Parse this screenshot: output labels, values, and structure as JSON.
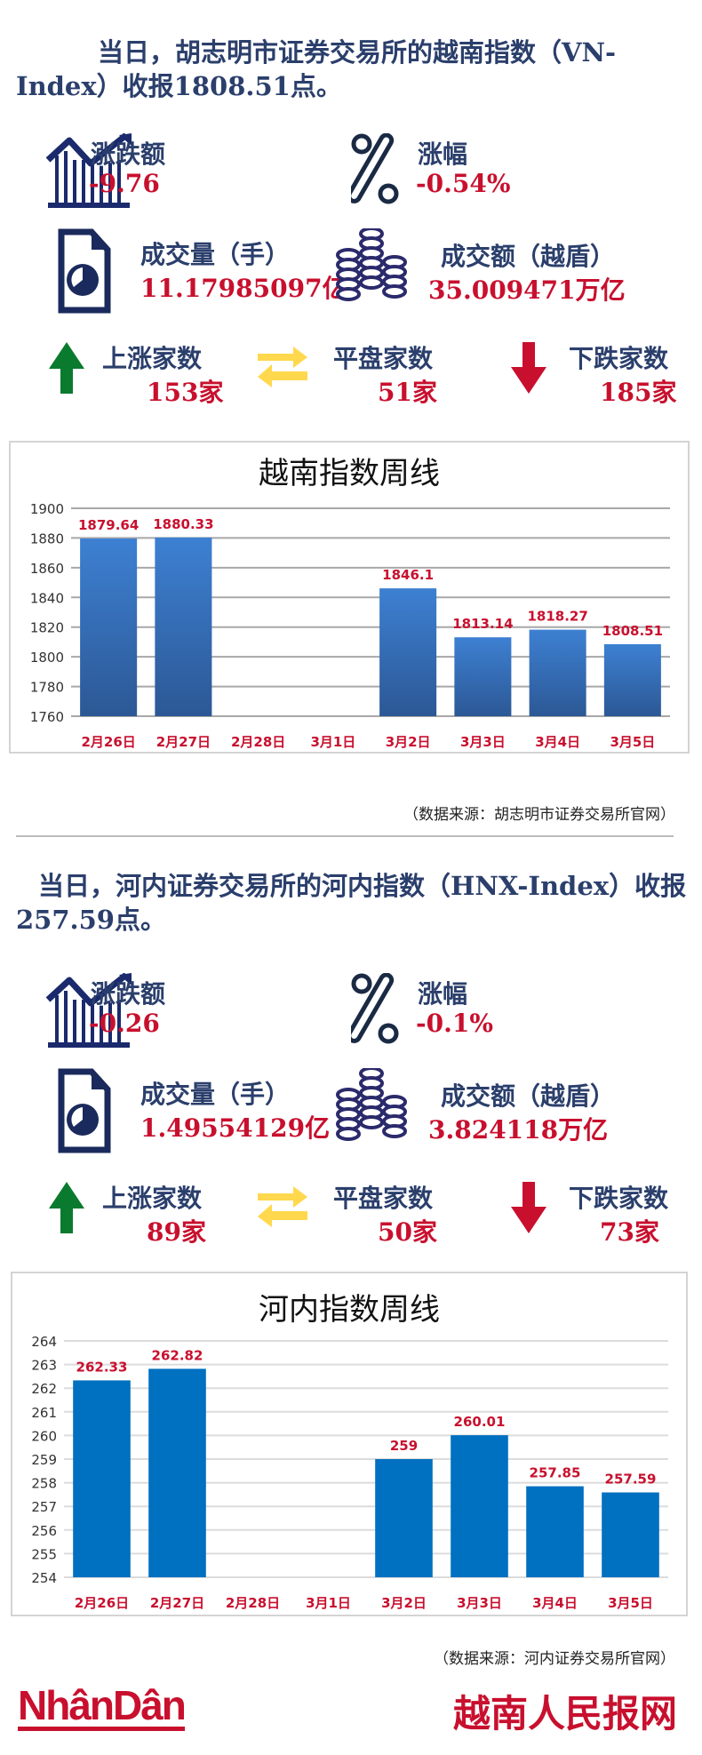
{
  "hose": {
    "headline": "当日，胡志明市证券交易所的越南指数（VN-Index）收报1808.51点。",
    "change": {
      "label": "涨跌额",
      "value": "-9.76",
      "icon": "trend-chart-icon"
    },
    "pct": {
      "label": "涨幅",
      "value": "-0.54%",
      "icon": "percent-icon"
    },
    "volume": {
      "label": "成交量（手）",
      "value": "11.17985097亿",
      "icon": "document-chart-icon"
    },
    "turnover": {
      "label": "成交额（越盾）",
      "value": "35.009471万亿",
      "icon": "coins-icon"
    },
    "up": {
      "label": "上涨家数",
      "value": "153家",
      "icon": "arrow-up-icon"
    },
    "flat": {
      "label": "平盘家数",
      "value": "51家",
      "icon": "exchange-arrows-icon"
    },
    "down": {
      "label": "下跌家数",
      "value": "185家",
      "icon": "arrow-down-icon"
    },
    "source": "（数据来源：胡志明市证券交易所官网）"
  },
  "hnx": {
    "headline": "当日，河内证券交易所的河内指数（HNX-Index）收报257.59点。",
    "change": {
      "label": "涨跌额",
      "value": "-0.26",
      "icon": "trend-chart-icon"
    },
    "pct": {
      "label": "涨幅",
      "value": "-0.1%",
      "icon": "percent-icon"
    },
    "volume": {
      "label": "成交量（手）",
      "value": "1.49554129亿",
      "icon": "document-chart-icon"
    },
    "turnover": {
      "label": "成交额（越盾）",
      "value": "3.824118万亿",
      "icon": "coins-icon"
    },
    "up": {
      "label": "上涨家数",
      "value": "89家",
      "icon": "arrow-up-icon"
    },
    "flat": {
      "label": "平盘家数",
      "value": "50家",
      "icon": "exchange-arrows-icon"
    },
    "down": {
      "label": "下跌家数",
      "value": "73家",
      "icon": "arrow-down-icon"
    },
    "source": "（数据来源：河内证券交易所官网）"
  },
  "colors": {
    "navy": "#2b3f6c",
    "red": "#c8102e",
    "green": "#0a7a2f",
    "yellow": "#ffd84d",
    "bar1": "#3a78c9",
    "bar2": "#0070c0"
  },
  "chart_data": [
    {
      "type": "bar",
      "title": "越南指数周线",
      "categories": [
        "2月26日",
        "2月27日",
        "2月28日",
        "3月1日",
        "3月2日",
        "3月3日",
        "3月4日",
        "3月5日"
      ],
      "values": [
        1879.64,
        1880.33,
        null,
        null,
        1846.1,
        1813.14,
        1818.27,
        1808.51
      ],
      "data_labels": [
        "1879.64",
        "1880.33",
        "",
        "",
        "1846.1",
        "1813.14",
        "1818.27",
        "1808.51"
      ],
      "yticks": [
        1760,
        1780,
        1800,
        1820,
        1840,
        1860,
        1880,
        1900
      ],
      "ylim": [
        1760,
        1900
      ],
      "grid": true
    },
    {
      "type": "bar",
      "title": "河内指数周线",
      "categories": [
        "2月26日",
        "2月27日",
        "2月28日",
        "3月1日",
        "3月2日",
        "3月3日",
        "3月4日",
        "3月5日"
      ],
      "values": [
        262.33,
        262.82,
        null,
        null,
        259,
        260.01,
        257.85,
        257.59
      ],
      "data_labels": [
        "262.33",
        "262.82",
        "",
        "",
        "259",
        "260.01",
        "257.85",
        "257.59"
      ],
      "yticks": [
        254,
        255,
        256,
        257,
        258,
        259,
        260,
        261,
        262,
        263,
        264
      ],
      "ylim": [
        254,
        264
      ],
      "grid": true
    }
  ],
  "footer": {
    "logo_left": "NhânDân",
    "logo_right": "越南人民报网"
  }
}
